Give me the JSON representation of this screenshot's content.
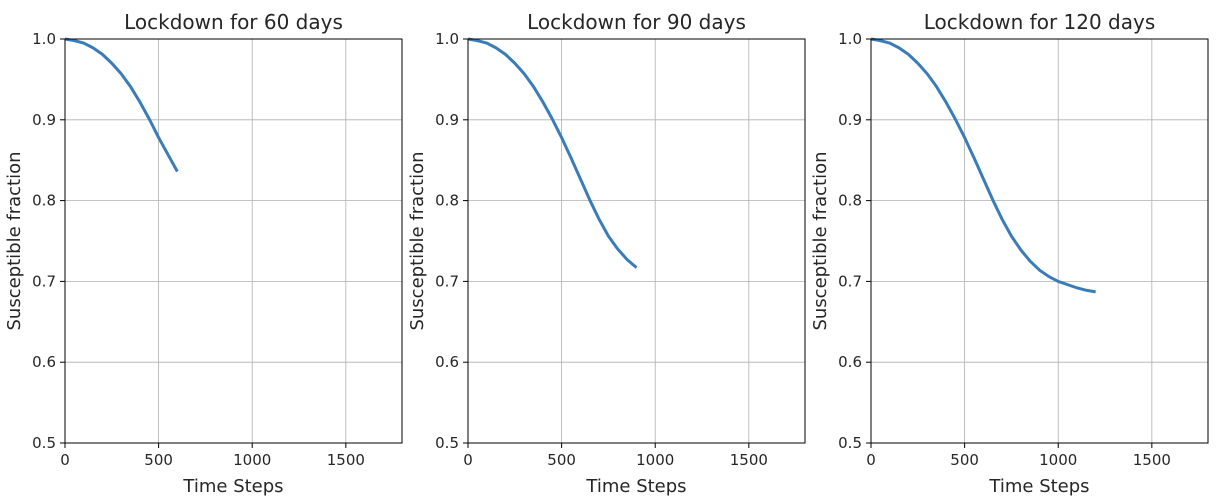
{
  "chart_data": [
    {
      "type": "line",
      "title": "Lockdown for 60 days",
      "xlabel": "Time Steps",
      "ylabel": "Susceptible fraction",
      "xlim": [
        0,
        1800
      ],
      "ylim": [
        0.5,
        1.0
      ],
      "xticks": [
        0,
        500,
        1000,
        1500
      ],
      "yticks": [
        0.5,
        0.6,
        0.7,
        0.8,
        0.9,
        1.0
      ],
      "grid": true,
      "series": [
        {
          "color": "#3a7cb8",
          "x": [
            0,
            50,
            100,
            150,
            200,
            250,
            300,
            350,
            400,
            450,
            500,
            550,
            600
          ],
          "y": [
            1.0,
            0.998,
            0.995,
            0.989,
            0.981,
            0.97,
            0.957,
            0.941,
            0.922,
            0.901,
            0.878,
            0.857,
            0.836
          ]
        }
      ]
    },
    {
      "type": "line",
      "title": "Lockdown for 90 days",
      "xlabel": "Time Steps",
      "ylabel": "Susceptible fraction",
      "xlim": [
        0,
        1800
      ],
      "ylim": [
        0.5,
        1.0
      ],
      "xticks": [
        0,
        500,
        1000,
        1500
      ],
      "yticks": [
        0.5,
        0.6,
        0.7,
        0.8,
        0.9,
        1.0
      ],
      "grid": true,
      "series": [
        {
          "color": "#3a7cb8",
          "x": [
            0,
            50,
            100,
            150,
            200,
            250,
            300,
            350,
            400,
            450,
            500,
            550,
            600,
            650,
            700,
            750,
            800,
            850,
            900
          ],
          "y": [
            1.0,
            0.998,
            0.995,
            0.989,
            0.981,
            0.97,
            0.957,
            0.941,
            0.922,
            0.901,
            0.878,
            0.853,
            0.827,
            0.801,
            0.777,
            0.756,
            0.74,
            0.727,
            0.717
          ]
        }
      ]
    },
    {
      "type": "line",
      "title": "Lockdown for 120 days",
      "xlabel": "Time Steps",
      "ylabel": "Susceptible fraction",
      "xlim": [
        0,
        1800
      ],
      "ylim": [
        0.5,
        1.0
      ],
      "xticks": [
        0,
        500,
        1000,
        1500
      ],
      "yticks": [
        0.5,
        0.6,
        0.7,
        0.8,
        0.9,
        1.0
      ],
      "grid": true,
      "series": [
        {
          "color": "#3a7cb8",
          "x": [
            0,
            50,
            100,
            150,
            200,
            250,
            300,
            350,
            400,
            450,
            500,
            550,
            600,
            650,
            700,
            750,
            800,
            850,
            900,
            950,
            1000,
            1050,
            1100,
            1150,
            1200
          ],
          "y": [
            1.0,
            0.998,
            0.995,
            0.989,
            0.981,
            0.97,
            0.957,
            0.941,
            0.922,
            0.901,
            0.878,
            0.853,
            0.827,
            0.801,
            0.777,
            0.756,
            0.739,
            0.725,
            0.714,
            0.706,
            0.7,
            0.696,
            0.692,
            0.689,
            0.687
          ]
        }
      ]
    }
  ]
}
